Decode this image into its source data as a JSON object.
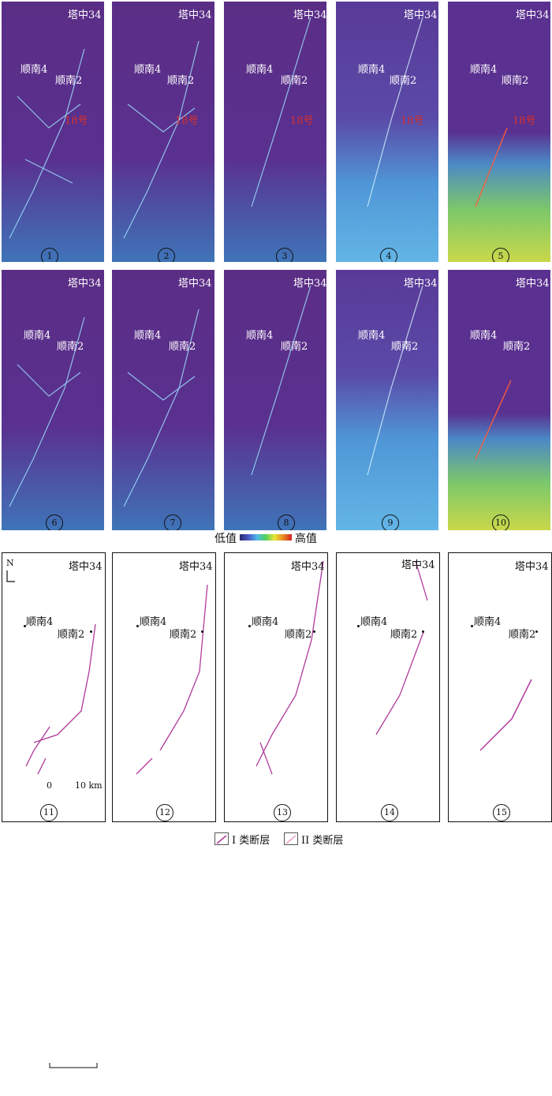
{
  "wells": {
    "tazhong34": "塔中34",
    "shunnan4": "顺南4",
    "shunnan2": "顺南2"
  },
  "fault_label": "18号",
  "panel_numbers": [
    "1",
    "2",
    "3",
    "4",
    "5",
    "6",
    "7",
    "8",
    "9",
    "10",
    "11",
    "12",
    "13",
    "14",
    "15"
  ],
  "colorbar": {
    "low": "低值",
    "high": "高值",
    "colors": [
      "#2b2b6e",
      "#4a58c6",
      "#52b8e8",
      "#52d05e",
      "#e8e637",
      "#e98a24",
      "#d32121"
    ]
  },
  "scale": {
    "start": "0",
    "end": "10 km"
  },
  "north": "N",
  "legend": {
    "class1": "I 类断层",
    "class2": "II 类断层"
  },
  "colors": {
    "fault": "#b03a9a",
    "map_base": "#5a3090"
  }
}
